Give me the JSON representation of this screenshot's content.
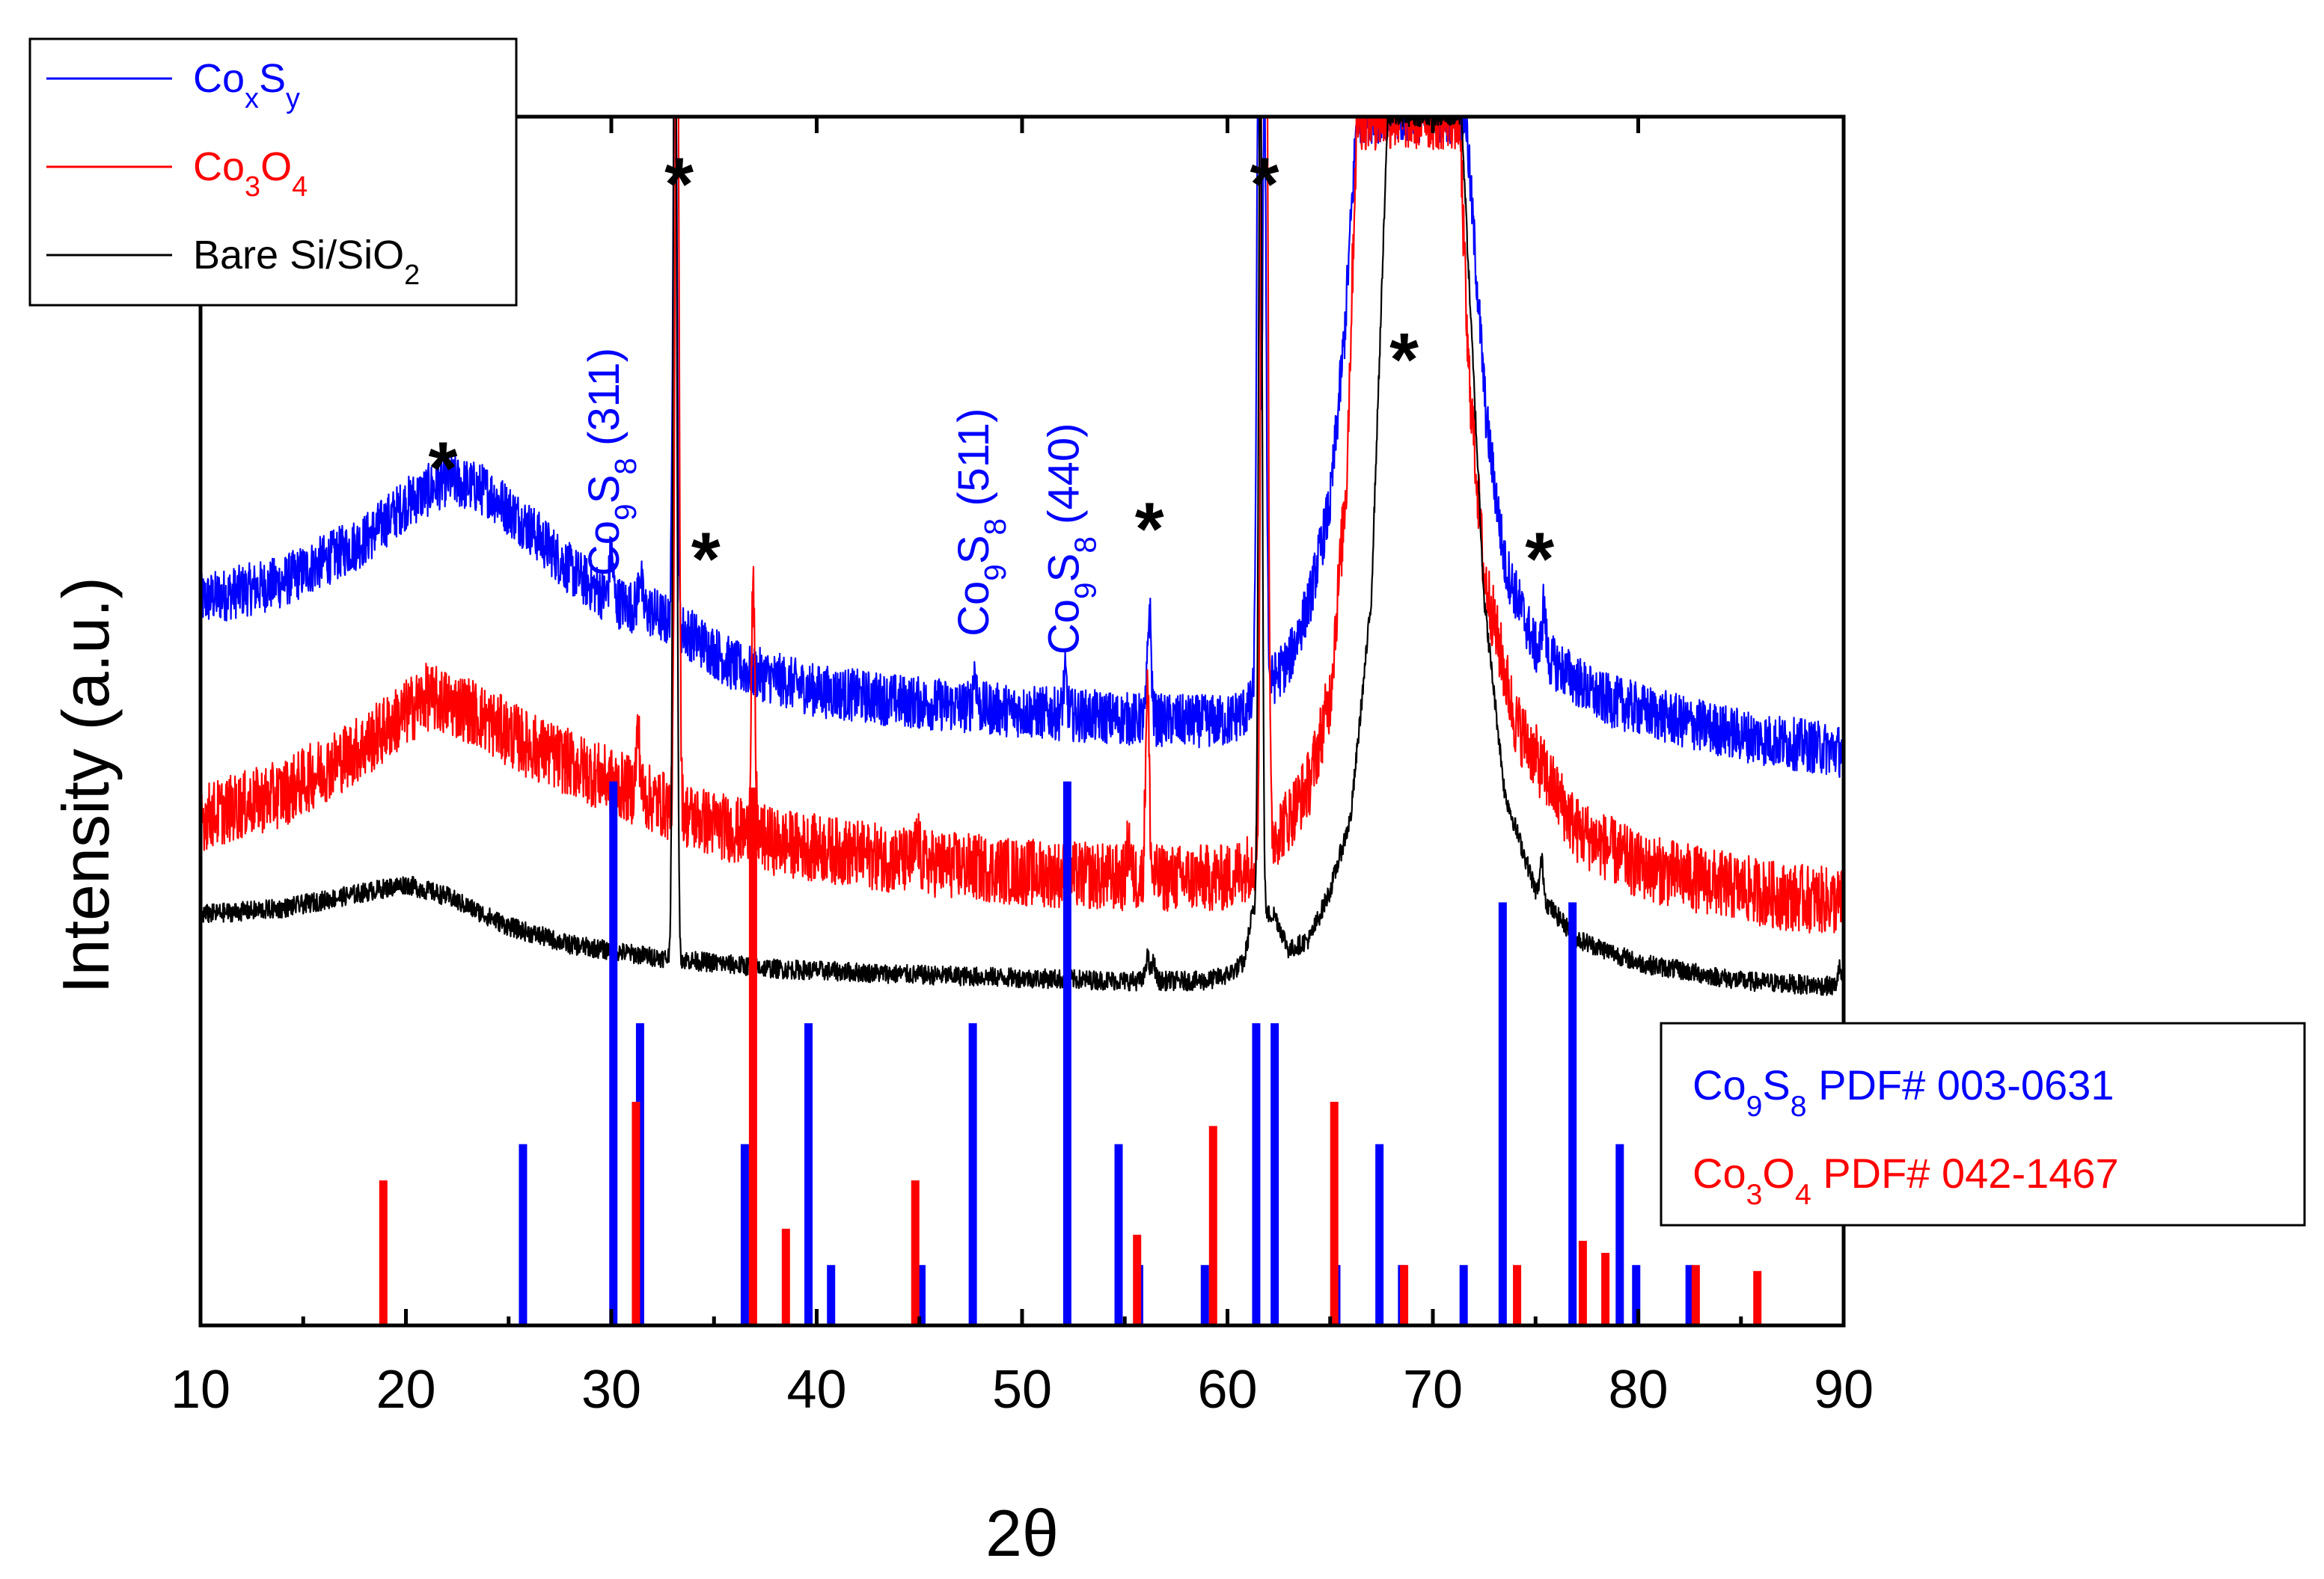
{
  "chart_data": {
    "type": "line",
    "xlabel": "2θ",
    "ylabel": "Intensity (a.u.)",
    "xlim": [
      10,
      90
    ],
    "ylim": [
      0,
      100
    ],
    "xticks": [
      "10",
      "20",
      "30",
      "40",
      "50",
      "60",
      "70",
      "80",
      "90"
    ],
    "x_minor_step": 5,
    "colors": {
      "blue": "#0000ff",
      "red": "#ff0000",
      "black": "#000000"
    },
    "series": [
      {
        "name": "CoxSy",
        "color": "#0000ff",
        "noise": 2.2,
        "points": [
          [
            10,
            60
          ],
          [
            14,
            61.5
          ],
          [
            18,
            65
          ],
          [
            20,
            68
          ],
          [
            22,
            70
          ],
          [
            24,
            69
          ],
          [
            26,
            66
          ],
          [
            28,
            62.5
          ],
          [
            30,
            60
          ],
          [
            32,
            59
          ],
          [
            34,
            57
          ],
          [
            36,
            54.5
          ],
          [
            40,
            52.5
          ],
          [
            45,
            51.5
          ],
          [
            50,
            50.8
          ],
          [
            55,
            50.2
          ],
          [
            58,
            50
          ],
          [
            60,
            50
          ],
          [
            61,
            51
          ],
          [
            62,
            53
          ],
          [
            63,
            55
          ],
          [
            64,
            60
          ],
          [
            65,
            68
          ],
          [
            65.7,
            82
          ],
          [
            66.3,
            100
          ],
          [
            71.6,
            100
          ],
          [
            72,
            90
          ],
          [
            72.6,
            75
          ],
          [
            73.5,
            63
          ],
          [
            75,
            56
          ],
          [
            78,
            52
          ],
          [
            82,
            50
          ],
          [
            86,
            48.5
          ],
          [
            90,
            47.5
          ]
        ],
        "peaks": [
          [
            30,
            4
          ],
          [
            31.4,
            3
          ],
          [
            33.1,
            56
          ],
          [
            47.7,
            3
          ],
          [
            52.1,
            3
          ],
          [
            56.2,
            9
          ],
          [
            61.5,
            50
          ],
          [
            61.8,
            50
          ],
          [
            75.4,
            4
          ]
        ]
      },
      {
        "name": "Co3O4",
        "color": "#ff0000",
        "noise": 2.8,
        "points": [
          [
            10,
            42
          ],
          [
            14,
            44
          ],
          [
            18,
            48
          ],
          [
            21,
            52
          ],
          [
            23,
            51
          ],
          [
            26,
            48
          ],
          [
            30,
            45
          ],
          [
            34,
            42
          ],
          [
            38,
            40
          ],
          [
            44,
            38.5
          ],
          [
            50,
            37.5
          ],
          [
            55,
            37
          ],
          [
            60,
            37
          ],
          [
            61,
            38
          ],
          [
            62,
            40
          ],
          [
            63,
            42
          ],
          [
            64,
            45
          ],
          [
            65,
            52
          ],
          [
            65.8,
            70
          ],
          [
            66.3,
            100
          ],
          [
            71.3,
            100
          ],
          [
            71.7,
            80
          ],
          [
            72.5,
            62
          ],
          [
            74,
            50
          ],
          [
            77,
            41
          ],
          [
            80,
            38
          ],
          [
            84,
            36.5
          ],
          [
            87,
            35.5
          ],
          [
            90,
            35
          ]
        ],
        "peaks": [
          [
            31.3,
            5
          ],
          [
            33.2,
            82
          ],
          [
            36.9,
            20
          ],
          [
            44.9,
            2
          ],
          [
            55.2,
            3
          ],
          [
            56.1,
            16
          ],
          [
            61.7,
            70
          ],
          [
            61.9,
            70
          ]
        ]
      },
      {
        "name": "Bare Si/SiO2",
        "color": "#000000",
        "noise": 0.8,
        "points": [
          [
            10,
            34
          ],
          [
            14,
            34.5
          ],
          [
            17,
            35.5
          ],
          [
            20,
            36.5
          ],
          [
            22,
            35.5
          ],
          [
            25,
            33
          ],
          [
            28,
            31.5
          ],
          [
            32,
            30.5
          ],
          [
            38,
            29.5
          ],
          [
            45,
            29
          ],
          [
            55,
            28.5
          ],
          [
            59,
            28.5
          ],
          [
            60,
            29
          ],
          [
            60.8,
            30
          ],
          [
            61.2,
            34
          ],
          [
            62.3,
            34
          ],
          [
            63,
            31
          ],
          [
            64,
            32
          ],
          [
            65,
            36
          ],
          [
            66,
            42
          ],
          [
            67,
            60
          ],
          [
            67.8,
            100
          ],
          [
            71.4,
            100
          ],
          [
            71.8,
            85
          ],
          [
            72.5,
            60
          ],
          [
            73.5,
            44
          ],
          [
            75,
            36
          ],
          [
            77,
            32
          ],
          [
            80,
            30
          ],
          [
            85,
            28.5
          ],
          [
            90,
            28
          ]
        ],
        "peaks": [
          [
            33.1,
            90
          ],
          [
            56.1,
            2
          ],
          [
            56.4,
            1.5
          ],
          [
            61.6,
            72
          ],
          [
            75.3,
            3
          ],
          [
            89.8,
            1.5
          ]
        ]
      }
    ],
    "reference_patterns": [
      {
        "name": "Co9S8 PDF# 003-0631",
        "color": "#0000ff",
        "peaks": [
          [
            25.7,
            15
          ],
          [
            30.1,
            45
          ],
          [
            31.4,
            25
          ],
          [
            36.5,
            15
          ],
          [
            39.6,
            25
          ],
          [
            40.7,
            5
          ],
          [
            45.1,
            5
          ],
          [
            47.6,
            25
          ],
          [
            52.2,
            45
          ],
          [
            54.7,
            15
          ],
          [
            55.7,
            5
          ],
          [
            58.9,
            5
          ],
          [
            61.4,
            25
          ],
          [
            62.3,
            25
          ],
          [
            65.3,
            5
          ],
          [
            67.4,
            15
          ],
          [
            68.5,
            5
          ],
          [
            71.5,
            5
          ],
          [
            73.4,
            35
          ],
          [
            76.8,
            35
          ],
          [
            79.1,
            15
          ],
          [
            79.9,
            5
          ],
          [
            82.5,
            5
          ]
        ]
      },
      {
        "name": "Co3O4 PDF# 042-1467",
        "color": "#ff0000",
        "peaks": [
          [
            18.9,
            12
          ],
          [
            31.2,
            18.5
          ],
          [
            36.9,
            44.5
          ],
          [
            38.5,
            8
          ],
          [
            44.8,
            12
          ],
          [
            55.6,
            7.5
          ],
          [
            59.3,
            16.5
          ],
          [
            65.2,
            18.5
          ],
          [
            68.6,
            5
          ],
          [
            74.1,
            5
          ],
          [
            77.3,
            7
          ],
          [
            78.4,
            6
          ],
          [
            82.8,
            5
          ],
          [
            85.8,
            4.5
          ]
        ]
      }
    ],
    "legend": {
      "placement": "top-left",
      "items": [
        {
          "main": "Co",
          "sub1": "x",
          "mid": "S",
          "sub2": "y",
          "after": "",
          "color": "#0000ff"
        },
        {
          "main": "Co",
          "sub1": "3",
          "mid": "O",
          "sub2": "4",
          "after": "",
          "color": "#ff0000"
        },
        {
          "main": "Bare Si/SiO",
          "sub1": "2",
          "mid": "",
          "sub2": "",
          "after": "",
          "color": "#000000"
        }
      ]
    },
    "reference_legend": {
      "placement": "bottom-right",
      "items": [
        {
          "main": "Co",
          "sub1": "9",
          "mid": "S",
          "sub2": "8",
          "after": " PDF# 003-0631",
          "color": "#0000ff"
        },
        {
          "main": "Co",
          "sub1": "3",
          "mid": "O",
          "sub2": "4",
          "after": " PDF# 042-1467",
          "color": "#ff0000"
        }
      ]
    },
    "annotations": [
      {
        "x": 29.7,
        "y": 62,
        "main": "Co",
        "sub1": "9",
        "mid": "S",
        "sub2": "8",
        "after": " (311)",
        "color": "#0000ff"
      },
      {
        "x": 47.7,
        "y": 57,
        "main": "Co",
        "sub1": "9",
        "mid": "S",
        "sub2": "8",
        "after": " (511)",
        "color": "#0000ff"
      },
      {
        "x": 52.1,
        "y": 55.5,
        "main": "Co",
        "sub1": "9",
        "mid": "S",
        "sub2": "8",
        "after": " (440)",
        "color": "#0000ff"
      }
    ],
    "markers": {
      "label": "*",
      "positions": [
        [
          21.8,
          72
        ],
        [
          33.3,
          95.5
        ],
        [
          34.6,
          64.5
        ],
        [
          56.2,
          67
        ],
        [
          61.8,
          95.5
        ],
        [
          68.6,
          81
        ],
        [
          75.2,
          64.5
        ]
      ]
    }
  }
}
